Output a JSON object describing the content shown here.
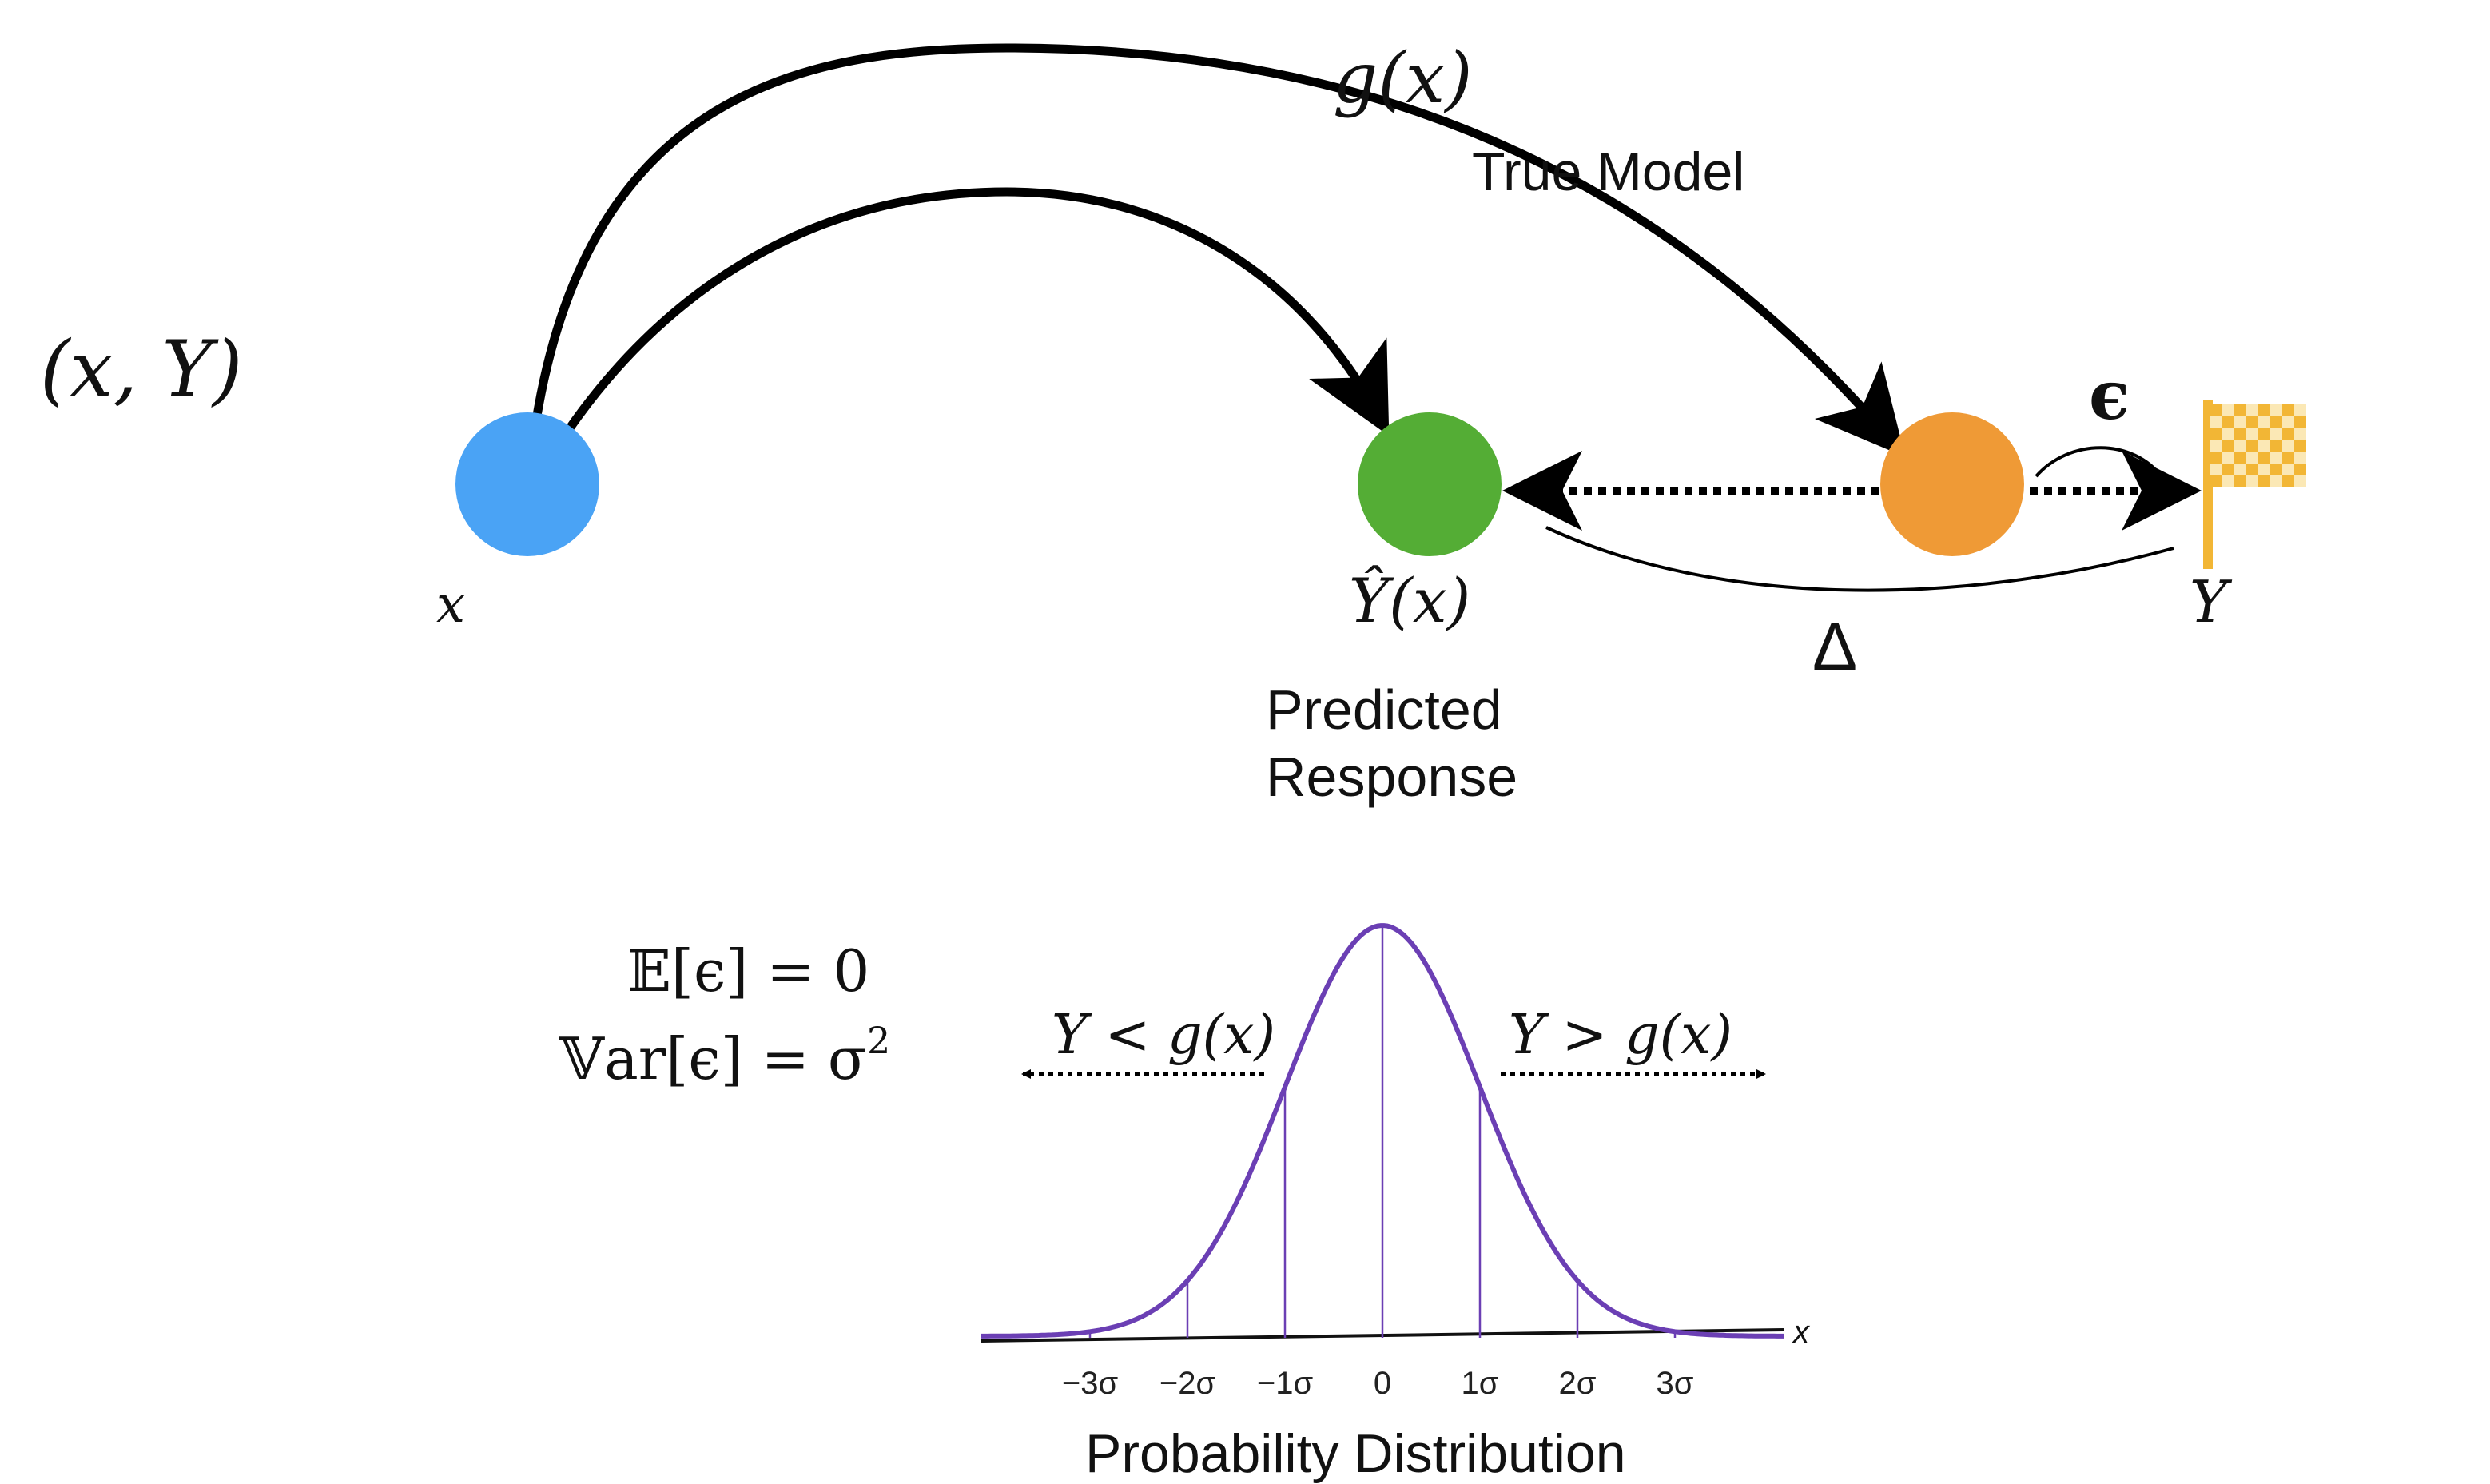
{
  "pair_label": "(x, Y)",
  "nodes": {
    "x": {
      "label": "x",
      "color": "#4aa3f5"
    },
    "yhat": {
      "label": "Ŷ(x)",
      "caption_line1": "Predicted",
      "caption_line2": "Response",
      "color": "#54ad35"
    },
    "truth": {
      "color": "#ef9a36"
    },
    "y": {
      "label": "Y"
    }
  },
  "arrows": {
    "true_model_math": "g(x)",
    "true_model_label": "True Model",
    "epsilon": "ϵ",
    "delta": "Δ"
  },
  "flag": {
    "icon": "checkered-flag-icon",
    "color": "#f2b635"
  },
  "equations": {
    "mean": "𝔼[ϵ] = 0",
    "var_prefix": "𝕍ar[ϵ] = σ",
    "var_exp": "2"
  },
  "distribution": {
    "left_label": "Y < g(x)",
    "right_label": "Y > g(x)",
    "axis_var": "x",
    "ticks": [
      "−3σ",
      "−2σ",
      "−1σ",
      "0",
      "1σ",
      "2σ",
      "3σ"
    ],
    "caption": "Probability Distribution",
    "curve_color": "#6b3fb4"
  }
}
